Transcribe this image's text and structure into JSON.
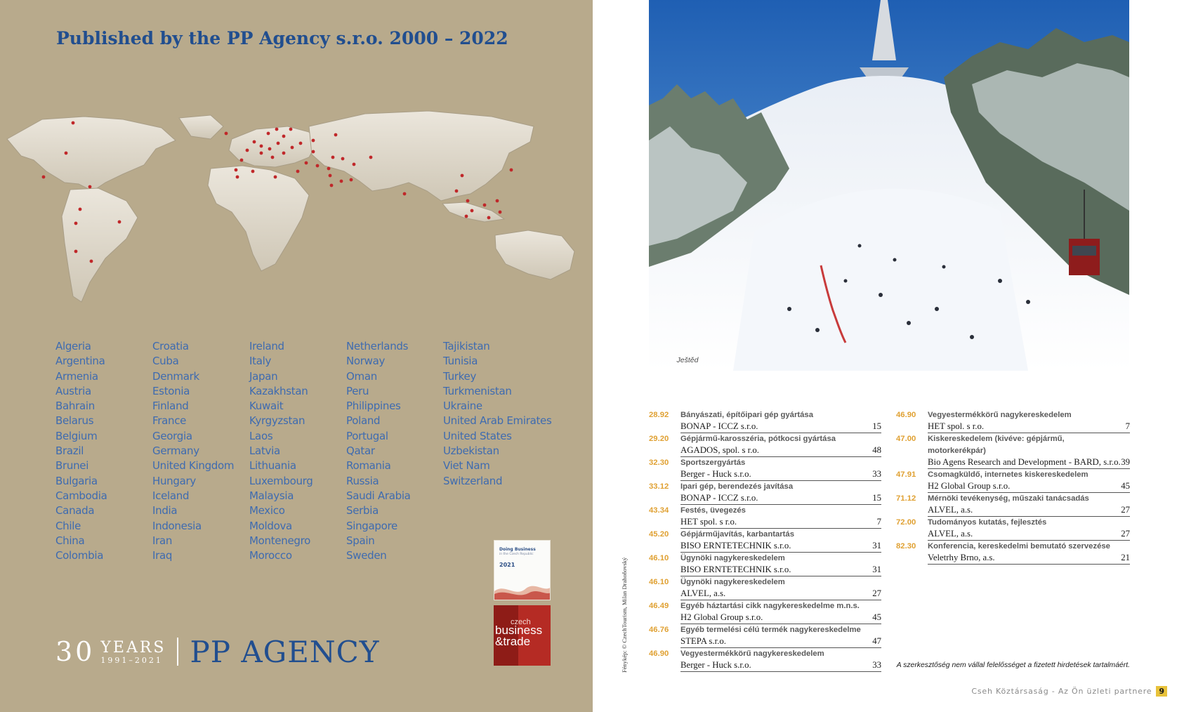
{
  "left_page": {
    "title": "Published by the PP Agency s.r.o. 2000 – 2022",
    "countries": [
      [
        "Algeria",
        "Argentina",
        "Armenia",
        "Austria",
        "Bahrain",
        "Belarus",
        "Belgium",
        "Brazil",
        "Brunei",
        "Bulgaria",
        "Cambodia",
        "Canada",
        "Chile",
        "China",
        "Colombia"
      ],
      [
        "Croatia",
        "Cuba",
        "Denmark",
        "Estonia",
        "Finland",
        "France",
        "Georgia",
        "Germany",
        "United Kingdom",
        "Hungary",
        "Iceland",
        "India",
        "Indonesia",
        "Iran",
        "Iraq"
      ],
      [
        "Ireland",
        "Italy",
        "Japan",
        "Kazakhstan",
        "Kuwait",
        "Kyrgyzstan",
        "Laos",
        "Latvia",
        "Lithuania",
        "Luxembourg",
        "Malaysia",
        "Mexico",
        "Moldova",
        "Montenegro",
        "Morocco"
      ],
      [
        "Netherlands",
        "Norway",
        "Oman",
        "Peru",
        "Philippines",
        "Poland",
        "Portugal",
        "Qatar",
        "Romania",
        "Russia",
        "Saudi Arabia",
        "Serbia",
        "Singapore",
        "Spain",
        "Sweden"
      ],
      [
        "Tajikistan",
        "Tunisia",
        "Turkey",
        "Turkmenistan",
        "Ukraine",
        "United Arab Emirates",
        "United States",
        "Uzbekistan",
        "Viet Nam",
        "Switzerland"
      ]
    ],
    "brand": {
      "thirty": "30",
      "years": "YEARS",
      "range": "1991–2021",
      "agency": "PP AGENCY"
    },
    "thumb_doing_business": {
      "title": "Doing Business",
      "subtitle": "in the Czech Republic",
      "year": "2021"
    },
    "thumb_cbt": {
      "czech": "czech",
      "business": "business",
      "trade": "&trade"
    },
    "colors": {
      "background": "#b8aa8c",
      "accent_blue": "#214e8f",
      "marker_red": "#c0282a"
    }
  },
  "right_page": {
    "photo_caption": "Ještěd",
    "credit": "Fénykép: © CzechTourism, Milan Drahoňovský",
    "listing_left": [
      {
        "code": "28.92",
        "activity": "Bányászati, építőipari gép gyártása",
        "company": "BONAP - ICCZ s.r.o.",
        "page": "15"
      },
      {
        "code": "29.20",
        "activity": "Gépjármű-karosszéria, pótkocsi gyártása",
        "company": "AGADOS, spol. s r.o.",
        "page": "48"
      },
      {
        "code": "32.30",
        "activity": "Sportszergyártás",
        "company": "Berger - Huck s.r.o.",
        "page": "33"
      },
      {
        "code": "33.12",
        "activity": "Ipari gép, berendezés javítása",
        "company": "BONAP - ICCZ s.r.o.",
        "page": "15"
      },
      {
        "code": "43.34",
        "activity": "Festés, üvegezés",
        "company": "HET spol. s r.o.",
        "page": "7"
      },
      {
        "code": "45.20",
        "activity": "Gépjárműjavítás, karbantartás",
        "company": "BISO ERNTETECHNIK s.r.o.",
        "page": "31"
      },
      {
        "code": "46.10",
        "activity": "Ügynöki nagykereskedelem",
        "company": "BISO ERNTETECHNIK s.r.o.",
        "page": "31"
      },
      {
        "code": "46.10",
        "activity": "Ügynöki nagykereskedelem",
        "company": "ALVEL, a.s.",
        "page": "27"
      },
      {
        "code": "46.49",
        "activity": "Egyéb háztartási cikk nagykereskedelme m.n.s.",
        "company": "H2 Global Group s.r.o.",
        "page": "45"
      },
      {
        "code": "46.76",
        "activity": "Egyéb termelési célú termék nagykereskedelme",
        "company": "STEPA s.r.o.",
        "page": "47"
      },
      {
        "code": "46.90",
        "activity": "Vegyestermékkörű nagykereskedelem",
        "company": "Berger - Huck s.r.o.",
        "page": "33"
      }
    ],
    "listing_right": [
      {
        "code": "46.90",
        "activity": "Vegyestermékkörű nagykereskedelem",
        "company": "HET spol. s r.o.",
        "page": "7"
      },
      {
        "code": "47.00",
        "activity": "Kiskereskedelem (kivéve: gépjármű,",
        "activity2": "motorkerékpár)",
        "company": "Bio Agens Research and Development - BARD, s.r.o.",
        "page": "39"
      },
      {
        "code": "47.91",
        "activity": "Csomagküldő, internetes kiskereskedelem",
        "company": "H2 Global Group s.r.o.",
        "page": "45"
      },
      {
        "code": "71.12",
        "activity": "Mérnöki tevékenység, műszaki tanácsadás",
        "company": "ALVEL, a.s.",
        "page": "27"
      },
      {
        "code": "72.00",
        "activity": "Tudományos kutatás, fejlesztés",
        "company": "ALVEL, a.s.",
        "page": "27"
      },
      {
        "code": "82.30",
        "activity": "Konferencia, kereskedelmi bemutató szervezése",
        "company": "Veletrhy Brno, a.s.",
        "page": "21"
      }
    ],
    "disclaimer": "A szerkesztőség nem vállal felelősséget a fizetett hirdetések tartalmáért.",
    "footer": {
      "text": "Cseh Köztársaság - Az Ön üzleti partnere",
      "page": "9"
    },
    "colors": {
      "code_orange": "#e0a133",
      "footer_badge": "#e8c23a"
    }
  }
}
